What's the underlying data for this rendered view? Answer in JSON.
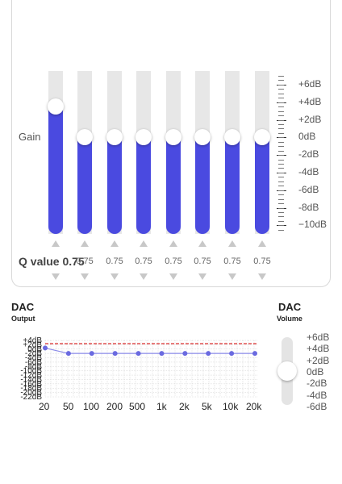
{
  "eq": {
    "gain_label": "Gain",
    "q_label": "Q value 0.75",
    "bands": [
      {
        "gain_db": 3.5,
        "q": "0.75"
      },
      {
        "gain_db": 0,
        "q": "0.75"
      },
      {
        "gain_db": 0,
        "q": "0.75"
      },
      {
        "gain_db": 0,
        "q": "0.75"
      },
      {
        "gain_db": 0,
        "q": "0.75"
      },
      {
        "gain_db": 0,
        "q": "0.75"
      },
      {
        "gain_db": 0,
        "q": "0.75"
      },
      {
        "gain_db": 0,
        "q": "0.75"
      }
    ],
    "scale": [
      "+6dB",
      "+4dB",
      "+2dB",
      "0dB",
      "-2dB",
      "-4dB",
      "-6dB",
      "-8dB",
      "−10dB"
    ],
    "colors": {
      "fill": "#4a4ae0",
      "track": "#e7e7e7"
    }
  },
  "dac_output": {
    "title": "DAC",
    "subtitle": "Output",
    "y_labels": [
      "+4dB",
      "+2dB",
      "0dB",
      "-2dB",
      "-4dB",
      "-6dB",
      "-8dB",
      "-10dB",
      "-12dB",
      "-14dB",
      "-16dB",
      "-18dB",
      "-20dB",
      "-22dB"
    ],
    "freq_labels": [
      "20",
      "50",
      "100",
      "200",
      "500",
      "1k",
      "2k",
      "5k",
      "10k",
      "20k"
    ],
    "curve_db": [
      0.5,
      -2,
      -2,
      -2,
      -2,
      -2,
      -2,
      -2,
      -2,
      -2
    ],
    "colors": {
      "curve": "#8a8ae8",
      "point": "#6a6ae0",
      "limit": "#e05050"
    }
  },
  "dac_volume": {
    "title": "DAC",
    "subtitle": "Volume",
    "labels": [
      "+6dB",
      "+4dB",
      "+2dB",
      "0dB",
      "-2dB",
      "-4dB",
      "-6dB"
    ],
    "level_db": 0
  }
}
